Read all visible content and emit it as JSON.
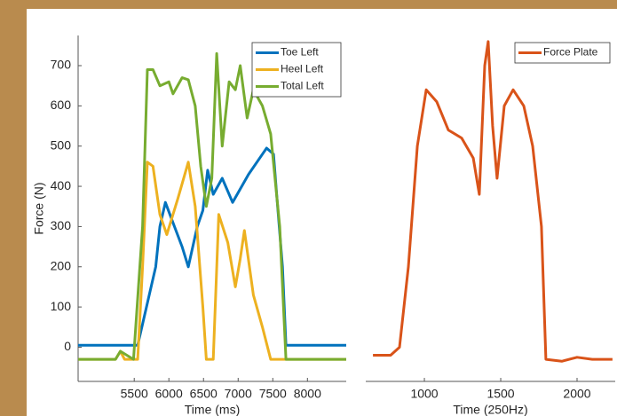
{
  "chart_data": [
    {
      "type": "line",
      "ylabel": "Force (N)",
      "xlabel": "Time (ms)",
      "xlim": [
        4690,
        8560
      ],
      "ylim": [
        -85,
        775
      ],
      "xticks": [
        5500,
        6000,
        6500,
        7000,
        7500,
        8000
      ],
      "yticks": [
        0,
        100,
        200,
        300,
        400,
        500,
        600,
        700
      ],
      "legend": "upper right",
      "series": [
        {
          "name": "Toe Left",
          "color": "#0072bd",
          "x": [
            4690,
            5550,
            5810,
            5870,
            5950,
            6080,
            6190,
            6280,
            6410,
            6490,
            6560,
            6640,
            6770,
            6920,
            7150,
            7350,
            7410,
            7510,
            7560,
            7640,
            7690,
            8560
          ],
          "values": [
            5,
            5,
            200,
            300,
            360,
            300,
            250,
            200,
            300,
            340,
            440,
            380,
            420,
            360,
            430,
            480,
            495,
            480,
            370,
            200,
            5,
            5
          ]
        },
        {
          "name": "Heel Left",
          "color": "#edb120",
          "x": [
            4690,
            5230,
            5300,
            5360,
            5550,
            5620,
            5690,
            5770,
            5870,
            5970,
            6130,
            6280,
            6380,
            6490,
            6540,
            6640,
            6720,
            6850,
            6960,
            7030,
            7090,
            7220,
            7350,
            7470,
            8560
          ],
          "values": [
            -30,
            -30,
            -10,
            -30,
            -30,
            200,
            460,
            450,
            330,
            280,
            370,
            460,
            350,
            100,
            -30,
            -30,
            330,
            260,
            150,
            220,
            290,
            130,
            50,
            -30,
            -30
          ]
        },
        {
          "name": "Total Left",
          "color": "#77ac30",
          "x": [
            4690,
            5230,
            5300,
            5490,
            5620,
            5690,
            5770,
            5870,
            6000,
            6060,
            6190,
            6280,
            6380,
            6460,
            6540,
            6620,
            6690,
            6770,
            6870,
            6960,
            7030,
            7130,
            7220,
            7350,
            7470,
            7600,
            7690,
            8560
          ],
          "values": [
            -30,
            -30,
            -10,
            -30,
            300,
            690,
            690,
            650,
            660,
            630,
            670,
            665,
            600,
            450,
            350,
            420,
            730,
            500,
            660,
            640,
            700,
            570,
            640,
            600,
            530,
            300,
            -30,
            -30
          ]
        }
      ]
    },
    {
      "type": "line",
      "xlabel": "Time (250Hz)",
      "xlim": [
        616,
        2250
      ],
      "ylim": [
        -85,
        775
      ],
      "xticks": [
        1000,
        1500,
        2000
      ],
      "legend": "upper right",
      "series": [
        {
          "name": "Force Plate",
          "color": "#d95319",
          "x": [
            663,
            779,
            837,
            895,
            954,
            1012,
            1081,
            1157,
            1244,
            1320,
            1360,
            1395,
            1418,
            1447,
            1476,
            1523,
            1581,
            1651,
            1709,
            1767,
            1796,
            1900,
            2000,
            2100,
            2232
          ],
          "values": [
            -20,
            -20,
            0,
            200,
            500,
            640,
            610,
            540,
            520,
            470,
            380,
            700,
            760,
            550,
            420,
            600,
            640,
            600,
            500,
            300,
            -30,
            -35,
            -25,
            -30,
            -30
          ]
        }
      ]
    }
  ]
}
